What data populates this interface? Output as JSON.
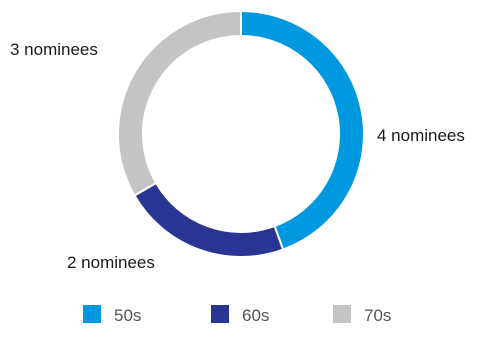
{
  "chart_data": {
    "type": "pie",
    "style": "donut",
    "categories": [
      "50s",
      "60s",
      "70s"
    ],
    "values": [
      4,
      2,
      3
    ],
    "data_labels": [
      "4 nominees",
      "2 nominees",
      "3 nominees"
    ],
    "colors": [
      "#0099e0",
      "#283593",
      "#c4c4c4"
    ],
    "title": "",
    "legend": {
      "placement": "bottom",
      "entries": [
        "50s",
        "60s",
        "70s"
      ]
    }
  }
}
